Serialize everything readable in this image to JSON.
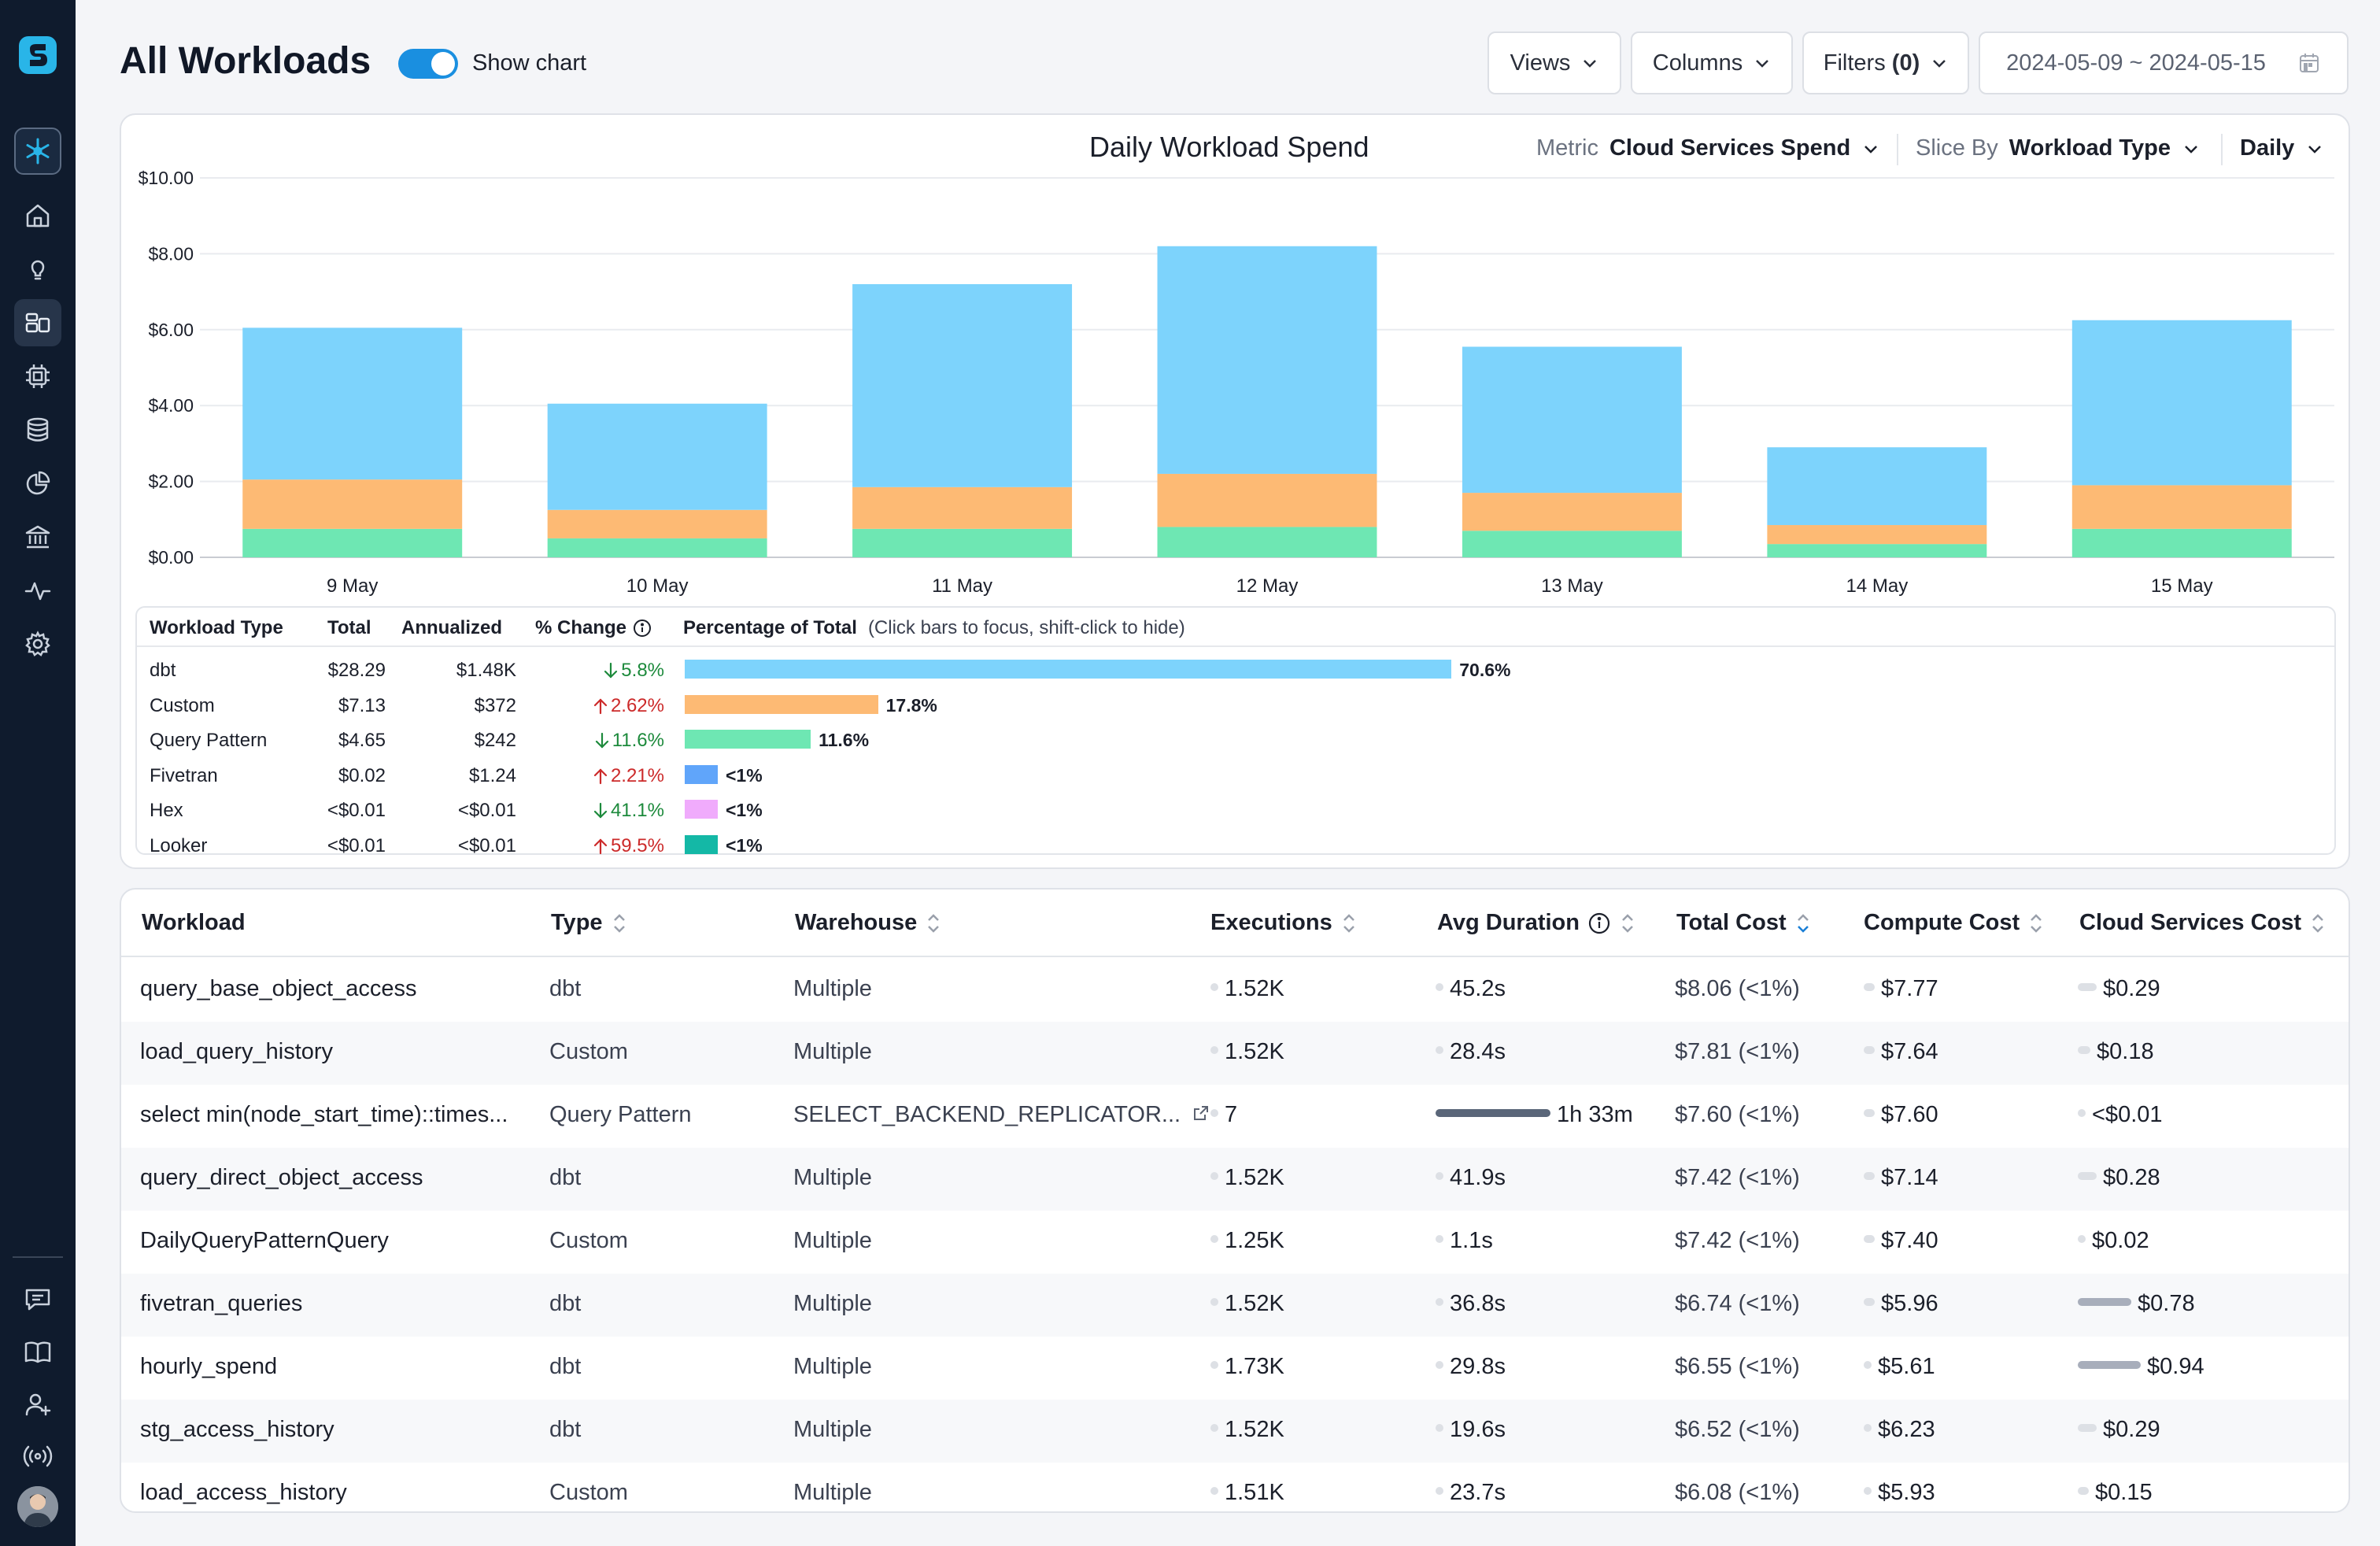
{
  "header": {
    "title": "All Workloads",
    "show_chart_label": "Show chart",
    "views_label": "Views",
    "columns_label": "Columns",
    "filters_label": "Filters",
    "filters_count": "(0)",
    "date_range": "2024-05-09 ~ 2024-05-15"
  },
  "chart_panel": {
    "metric_label": "Metric",
    "metric_value": "Cloud Services Spend",
    "slice_label": "Slice By",
    "slice_value": "Workload Type",
    "granularity": "Daily"
  },
  "chart_data": {
    "type": "bar",
    "stacked": true,
    "title": "Daily Workload Spend",
    "categories": [
      "9 May",
      "10 May",
      "11 May",
      "12 May",
      "13 May",
      "14 May",
      "15 May"
    ],
    "series": [
      {
        "name": "Query Pattern",
        "color": "#6ee7b3",
        "values": [
          0.75,
          0.5,
          0.75,
          0.8,
          0.7,
          0.35,
          0.75
        ]
      },
      {
        "name": "Custom",
        "color": "#fdba74",
        "values": [
          1.3,
          0.75,
          1.1,
          1.4,
          1.0,
          0.5,
          1.15
        ]
      },
      {
        "name": "dbt",
        "color": "#7dd3fc",
        "values": [
          4.0,
          2.8,
          5.35,
          6.0,
          3.85,
          2.05,
          4.35
        ]
      }
    ],
    "y_ticks": [
      "$0.00",
      "$2.00",
      "$4.00",
      "$6.00",
      "$8.00",
      "$10.00"
    ],
    "ylim": [
      0,
      10
    ],
    "xlabel": "",
    "ylabel": "",
    "grid": true
  },
  "legend_table": {
    "headers": {
      "type": "Workload Type",
      "total": "Total",
      "annualized": "Annualized",
      "change": "% Change",
      "percentage": "Percentage of Total",
      "note": "(Click bars to focus, shift-click to hide)"
    },
    "rows": [
      {
        "type": "dbt",
        "total": "$28.29",
        "annualized": "$1.48K",
        "direction": "down",
        "change": "5.8%",
        "pct_label": "70.6%",
        "pct": 70.6,
        "color": "#7dd3fc"
      },
      {
        "type": "Custom",
        "total": "$7.13",
        "annualized": "$372",
        "direction": "up",
        "change": "2.62%",
        "pct_label": "17.8%",
        "pct": 17.8,
        "color": "#fdba74"
      },
      {
        "type": "Query Pattern",
        "total": "$4.65",
        "annualized": "$242",
        "direction": "down",
        "change": "11.6%",
        "pct_label": "11.6%",
        "pct": 11.6,
        "color": "#6ee7b3"
      },
      {
        "type": "Fivetran",
        "total": "$0.02",
        "annualized": "$1.24",
        "direction": "up",
        "change": "2.21%",
        "pct_label": "<1%",
        "pct": 0.9,
        "color": "#60a5fa"
      },
      {
        "type": "Hex",
        "total": "<$0.01",
        "annualized": "<$0.01",
        "direction": "down",
        "change": "41.1%",
        "pct_label": "<1%",
        "pct": 0.9,
        "color": "#f0abfc"
      },
      {
        "type": "Looker",
        "total": "<$0.01",
        "annualized": "<$0.01",
        "direction": "up",
        "change": "59.5%",
        "pct_label": "<1%",
        "pct": 0.9,
        "color": "#14b8a6"
      }
    ]
  },
  "table": {
    "columns": {
      "workload": "Workload",
      "type": "Type",
      "warehouse": "Warehouse",
      "executions": "Executions",
      "avg_duration": "Avg Duration",
      "total_cost": "Total Cost",
      "compute_cost": "Compute Cost",
      "cloud_cost": "Cloud Services Cost"
    },
    "rows": [
      {
        "workload": "query_base_object_access",
        "type": "dbt",
        "warehouse": "Multiple",
        "executions": "1.52K",
        "duration": "45.2s",
        "duration_frac": 0.02,
        "total": "$8.06 (<1%)",
        "compute": "$7.77",
        "compute_frac": 0.1,
        "cloud": "$0.29",
        "cloud_frac": 0.3
      },
      {
        "workload": "load_query_history",
        "type": "Custom",
        "warehouse": "Multiple",
        "executions": "1.52K",
        "duration": "28.4s",
        "duration_frac": 0.02,
        "total": "$7.81 (<1%)",
        "compute": "$7.64",
        "compute_frac": 0.1,
        "cloud": "$0.18",
        "cloud_frac": 0.2
      },
      {
        "workload": "select min(node_start_time)::times...",
        "type": "Query Pattern",
        "warehouse": "SELECT_BACKEND_REPLICATOR...",
        "warehouse_link": true,
        "executions": "7",
        "duration": "1h 33m",
        "duration_frac": 1.0,
        "duration_dark": true,
        "total": "$7.60 (<1%)",
        "compute": "$7.60",
        "compute_frac": 0.1,
        "cloud": "<$0.01",
        "cloud_frac": 0.02
      },
      {
        "workload": "query_direct_object_access",
        "type": "dbt",
        "warehouse": "Multiple",
        "executions": "1.52K",
        "duration": "41.9s",
        "duration_frac": 0.02,
        "total": "$7.42 (<1%)",
        "compute": "$7.14",
        "compute_frac": 0.1,
        "cloud": "$0.28",
        "cloud_frac": 0.3
      },
      {
        "workload": "DailyQueryPatternQuery",
        "type": "Custom",
        "warehouse": "Multiple",
        "executions": "1.25K",
        "duration": "1.1s",
        "duration_frac": 0.01,
        "total": "$7.42 (<1%)",
        "compute": "$7.40",
        "compute_frac": 0.1,
        "cloud": "$0.02",
        "cloud_frac": 0.05
      },
      {
        "workload": "fivetran_queries",
        "type": "dbt",
        "warehouse": "Multiple",
        "executions": "1.52K",
        "duration": "36.8s",
        "duration_frac": 0.02,
        "total": "$6.74 (<1%)",
        "compute": "$5.96",
        "compute_frac": 0.1,
        "cloud": "$0.78",
        "cloud_frac": 0.85,
        "cloud_mid": true
      },
      {
        "workload": "hourly_spend",
        "type": "dbt",
        "warehouse": "Multiple",
        "executions": "1.73K",
        "duration": "29.8s",
        "duration_frac": 0.02,
        "total": "$6.55 (<1%)",
        "compute": "$5.61",
        "compute_frac": 0.05,
        "cloud": "$0.94",
        "cloud_frac": 1.0,
        "cloud_mid": true
      },
      {
        "workload": "stg_access_history",
        "type": "dbt",
        "warehouse": "Multiple",
        "executions": "1.52K",
        "duration": "19.6s",
        "duration_frac": 0.02,
        "total": "$6.52 (<1%)",
        "compute": "$6.23",
        "compute_frac": 0.05,
        "cloud": "$0.29",
        "cloud_frac": 0.3
      },
      {
        "workload": "load_access_history",
        "type": "Custom",
        "warehouse": "Multiple",
        "executions": "1.51K",
        "duration": "23.7s",
        "duration_frac": 0.02,
        "total": "$6.08 (<1%)",
        "compute": "$5.93",
        "compute_frac": 0.05,
        "cloud": "$0.15",
        "cloud_frac": 0.18
      }
    ]
  }
}
